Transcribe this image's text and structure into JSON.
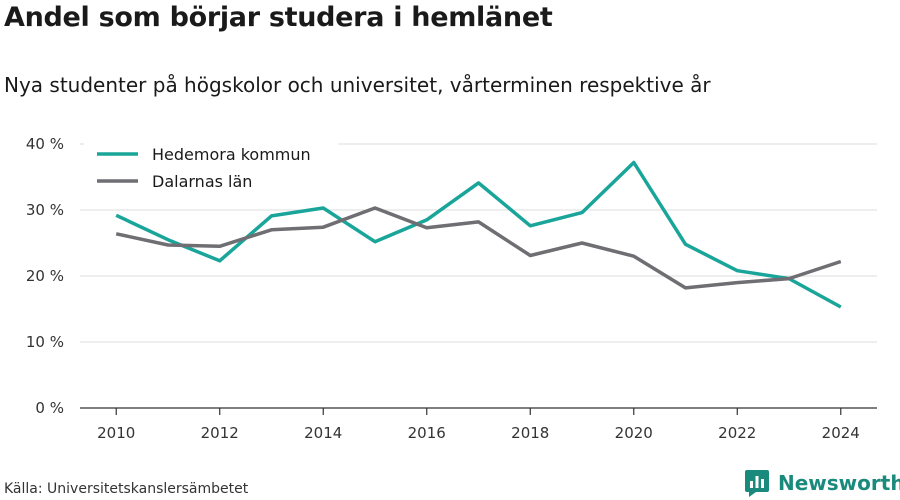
{
  "chart_data": {
    "type": "line",
    "title": "Andel som börjar studera i hemlänet",
    "subtitle": "Nya studenter på högskolor och universitet, vårterminen respektive år",
    "x": [
      2010,
      2011,
      2012,
      2013,
      2014,
      2015,
      2016,
      2017,
      2018,
      2019,
      2020,
      2021,
      2022,
      2023,
      2024
    ],
    "x_ticks": [
      "2010",
      "2012",
      "2014",
      "2016",
      "2018",
      "2020",
      "2022",
      "2024"
    ],
    "x_tick_values": [
      2010,
      2012,
      2014,
      2016,
      2018,
      2020,
      2022,
      2024
    ],
    "y_ticks": [
      "0 %",
      "10 %",
      "20 %",
      "30 %",
      "40 %"
    ],
    "y_tick_values": [
      0,
      10,
      20,
      30,
      40
    ],
    "ylim": [
      0,
      40
    ],
    "grid": true,
    "legend_position": "top-left",
    "series": [
      {
        "name": "Hedemora kommun",
        "color": "#1aa59a",
        "values": [
          29.2,
          25.5,
          22.3,
          29.1,
          30.3,
          25.2,
          28.5,
          34.1,
          27.6,
          29.6,
          37.2,
          24.8,
          20.8,
          19.6,
          15.3
        ]
      },
      {
        "name": "Dalarnas län",
        "color": "#6e6e73",
        "values": [
          26.4,
          24.7,
          24.5,
          27.0,
          27.4,
          30.3,
          27.3,
          28.2,
          23.1,
          25.0,
          23.0,
          18.2,
          19.0,
          19.6,
          22.2
        ]
      }
    ]
  },
  "source": "Källa: Universitetskanslersämbetet",
  "brand": {
    "name": "Newsworthy",
    "icon": "newsworthy-logo-icon",
    "color": "#1a8a7c"
  }
}
